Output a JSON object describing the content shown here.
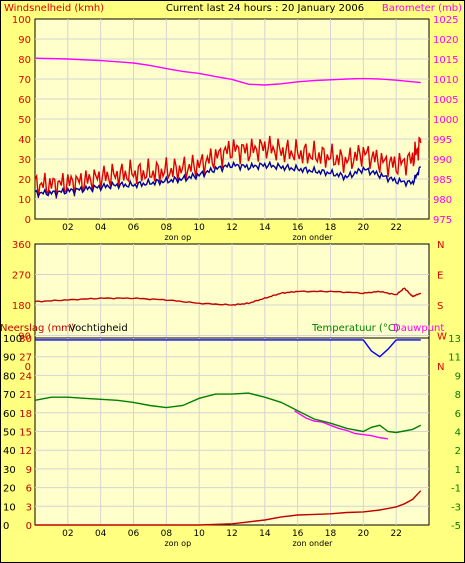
{
  "header": {
    "left": "Windsnelheid (kmh)",
    "center": "Current last 24 hours : 20 January 2006",
    "right": "Barometer (mb)"
  },
  "hour_labels": [
    "02",
    "04",
    "06",
    "08",
    "10",
    "12",
    "14",
    "16",
    "18",
    "20",
    "22"
  ],
  "sun_labels": {
    "sunrise": "zon op",
    "sunset": "zon onder"
  },
  "colors": {
    "background": "#ffff80",
    "plot": "#ffffcc",
    "grid": "#d4d4d4",
    "wind": "#e00000",
    "gust_avg": "#0000a0",
    "barometer": "#ff00ff",
    "direction": "#c00000",
    "temperature": "#008000",
    "dewpoint": "#ff00ff",
    "humidity": "#0000ff",
    "rain": "#c00000"
  },
  "chart_data": [
    {
      "type": "line",
      "id": "wind-barometer",
      "xlim": [
        0,
        24
      ],
      "left_axis": {
        "label": "Windsnelheid (kmh)",
        "ylim": [
          0,
          100
        ],
        "ticks": [
          "0",
          "10",
          "20",
          "30",
          "40",
          "50",
          "60",
          "70",
          "80",
          "90",
          "100"
        ]
      },
      "right_axis": {
        "label": "Barometer (mb)",
        "ylim": [
          975,
          1025
        ],
        "ticks": [
          "975",
          "980",
          "985",
          "990",
          "995",
          "1000",
          "1005",
          "1010",
          "1015",
          "1020",
          "1025"
        ]
      },
      "series": [
        {
          "key": "wind_gust",
          "axis": "left",
          "x": [
            0,
            1,
            2,
            3,
            4,
            5,
            6,
            7,
            8,
            9,
            10,
            11,
            12,
            13,
            14,
            15,
            16,
            17,
            18,
            19,
            20,
            21,
            22,
            23,
            23.5
          ],
          "y": [
            17,
            17,
            18,
            19,
            21,
            22,
            23,
            23,
            24,
            25,
            27,
            31,
            35,
            34,
            36,
            34,
            33,
            32,
            31,
            29,
            33,
            29,
            27,
            30,
            38
          ]
        },
        {
          "key": "wind_avg",
          "axis": "left",
          "x": [
            0,
            1,
            2,
            3,
            4,
            5,
            6,
            7,
            8,
            9,
            10,
            11,
            12,
            13,
            14,
            15,
            16,
            17,
            18,
            19,
            20,
            21,
            22,
            23,
            23.5
          ],
          "y": [
            13,
            13,
            14,
            15,
            16,
            17,
            17,
            18,
            19,
            20,
            22,
            25,
            27,
            26,
            27,
            26,
            25,
            24,
            23,
            21,
            25,
            22,
            19,
            18,
            26
          ]
        },
        {
          "key": "barometer",
          "axis": "right",
          "x": [
            0,
            2,
            4,
            6,
            7,
            8,
            9,
            10,
            11,
            12,
            13,
            14,
            15,
            16,
            17,
            18,
            19,
            20,
            21,
            22,
            23.5
          ],
          "y": [
            1015.2,
            1015.0,
            1014.6,
            1014.0,
            1013.4,
            1012.6,
            1011.9,
            1011.4,
            1010.6,
            1009.9,
            1008.7,
            1008.5,
            1008.8,
            1009.3,
            1009.6,
            1009.8,
            1010.0,
            1010.1,
            1010.0,
            1009.7,
            1009.1
          ]
        }
      ]
    },
    {
      "type": "line",
      "id": "wind-direction",
      "xlim": [
        0,
        24
      ],
      "left_axis": {
        "ylim": [
          0,
          360
        ],
        "ticks": [
          "0",
          "90",
          "180",
          "270",
          "360"
        ]
      },
      "right_axis": {
        "ticks": [
          "N",
          "W",
          "S",
          "E",
          "N"
        ]
      },
      "series": [
        {
          "key": "direction",
          "x": [
            0,
            2,
            4,
            6,
            8,
            10,
            12,
            13,
            14,
            15,
            16,
            18,
            20,
            21,
            22,
            22.5,
            23,
            23.5
          ],
          "y": [
            190,
            195,
            200,
            200,
            195,
            185,
            180,
            185,
            200,
            215,
            220,
            220,
            215,
            220,
            210,
            230,
            205,
            215
          ]
        }
      ]
    },
    {
      "type": "line",
      "id": "rain-humidity-temperature",
      "xlim": [
        0,
        24
      ],
      "left_axis_humidity": {
        "label": "Vochtigheid",
        "ylim": [
          0,
          100
        ],
        "ticks": [
          "0",
          "10",
          "20",
          "30",
          "40",
          "50",
          "60",
          "70",
          "80",
          "90",
          "100"
        ]
      },
      "left_axis_rain": {
        "label": "Neerslag (mm)",
        "ylim": [
          0,
          30
        ],
        "ticks": [
          "0",
          "3",
          "6",
          "9",
          "12",
          "15",
          "18",
          "21",
          "24",
          "27",
          "30"
        ]
      },
      "right_axis": {
        "label": "Temperatuur (°C)",
        "label2": "Dauwpunt",
        "ylim": [
          -5,
          13
        ],
        "ticks": [
          "-5",
          "-3",
          "-1",
          "1",
          "2",
          "4",
          "6",
          "8",
          "9",
          "11",
          "13"
        ]
      },
      "series": [
        {
          "key": "humidity",
          "axis": "humidity",
          "x": [
            0,
            2,
            4,
            6,
            8,
            10,
            12,
            14,
            16,
            18,
            19,
            20,
            20.5,
            21,
            21.5,
            22,
            23,
            23.5
          ],
          "y": [
            99,
            99,
            99,
            99,
            99,
            99,
            99,
            99,
            99,
            99,
            99,
            99,
            93,
            90,
            94,
            99,
            99,
            99
          ]
        },
        {
          "key": "temperature",
          "axis": "temperature",
          "x": [
            0,
            1,
            2,
            3,
            4,
            5,
            6,
            7,
            8,
            9,
            10,
            11,
            12,
            13,
            14,
            15,
            16,
            17,
            18,
            19,
            20,
            20.5,
            21,
            21.5,
            22,
            23,
            23.5
          ],
          "y": [
            7.0,
            7.3,
            7.3,
            7.2,
            7.1,
            7.0,
            6.8,
            6.5,
            6.3,
            6.5,
            7.2,
            7.6,
            7.6,
            7.7,
            7.3,
            6.8,
            6.0,
            5.2,
            4.8,
            4.3,
            4.0,
            4.4,
            4.6,
            4.0,
            3.9,
            4.2,
            4.6
          ]
        },
        {
          "key": "dewpoint",
          "axis": "temperature",
          "x": [
            15.8,
            16.5,
            17,
            17.5,
            18,
            18.5,
            19,
            19.5,
            20,
            20.5,
            21,
            21.5
          ],
          "y": [
            6.0,
            5.3,
            5.0,
            4.9,
            4.6,
            4.3,
            4.1,
            3.8,
            3.7,
            3.6,
            3.4,
            3.3
          ]
        },
        {
          "key": "rain",
          "axis": "rain",
          "x": [
            0,
            8,
            10,
            12,
            13,
            14,
            15,
            16,
            17,
            18,
            19,
            20,
            21,
            22,
            22.5,
            23,
            23.5
          ],
          "y": [
            0,
            0,
            0,
            0.2,
            0.5,
            0.8,
            1.3,
            1.6,
            1.7,
            1.8,
            2.0,
            2.1,
            2.4,
            2.9,
            3.4,
            4.1,
            5.5
          ]
        }
      ]
    }
  ]
}
